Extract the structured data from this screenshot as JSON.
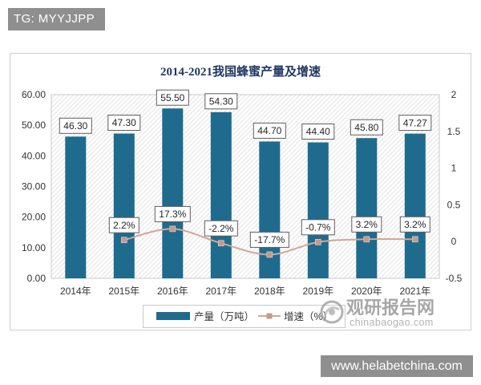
{
  "top_tag": "TG: MYYJJPP",
  "bottom_tag": "www.helabetchina.com",
  "source_watermark": {
    "name": "观研报告网",
    "url": "chinabaogao.com",
    "logo_icon": "swirl-circle-logo-icon"
  },
  "chart_data": {
    "type": "bar",
    "title": "2014-2021我国蜂蜜产量及增速",
    "categories": [
      "2014年",
      "2015年",
      "2016年",
      "2017年",
      "2018年",
      "2019年",
      "2020年",
      "2021年"
    ],
    "series": [
      {
        "name": "产量（万吨）",
        "type": "bar",
        "axis": "left",
        "color": "#1f6b8e",
        "values": [
          46.3,
          47.3,
          55.5,
          54.3,
          44.7,
          44.4,
          45.8,
          47.27
        ],
        "labels": [
          "46.30",
          "47.30",
          "55.50",
          "54.30",
          "44.70",
          "44.40",
          "45.80",
          "47.27"
        ]
      },
      {
        "name": "增速（%）",
        "type": "line",
        "axis": "right",
        "color": "#d3a694",
        "marker_color": "#c49b8a",
        "smooth": true,
        "values": [
          null,
          0.022,
          0.173,
          -0.022,
          -0.177,
          -0.007,
          0.032,
          0.032
        ],
        "labels": [
          null,
          "2.2%",
          "17.3%",
          "-2.2%",
          "-17.7%",
          "-0.7%",
          "3.2%",
          "3.2%"
        ]
      }
    ],
    "y_left": {
      "range": [
        0,
        60
      ],
      "tick_labels": [
        "0.00",
        "10.00",
        "20.00",
        "30.00",
        "40.00",
        "50.00",
        "60.00"
      ]
    },
    "y_right": {
      "range": [
        -0.5,
        2
      ],
      "tick_labels": [
        "-0.5",
        "0",
        "0.5",
        "1",
        "1.5",
        "2"
      ]
    },
    "grid": false,
    "legend": "bottom"
  }
}
